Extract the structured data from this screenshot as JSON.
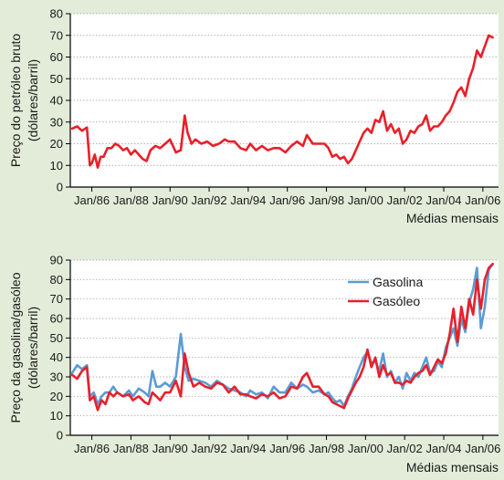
{
  "colors": {
    "background": "#e3ecd9",
    "plot_background": "#ffffff",
    "crude": "#e8202a",
    "gasolina": "#5b9bd5",
    "gasoleo": "#e8202a",
    "grid": "#9a9a9a"
  },
  "chart_data": [
    {
      "type": "line",
      "title": "",
      "xlabel": "Médias mensais",
      "ylabel_lines": [
        "Preço do petróleo bruto",
        "(dólares/barril)"
      ],
      "ylim": [
        0,
        80
      ],
      "yticks": [
        0,
        10,
        20,
        30,
        40,
        50,
        60,
        70,
        80
      ],
      "xlim": [
        1984.9,
        2006.8
      ],
      "xticks": [
        {
          "x": 1986,
          "label": "Jan/86"
        },
        {
          "x": 1988,
          "label": "Jan/88"
        },
        {
          "x": 1990,
          "label": "Jan/90"
        },
        {
          "x": 1992,
          "label": "Jan/92"
        },
        {
          "x": 1994,
          "label": "Jan/94"
        },
        {
          "x": 1996,
          "label": "Jan/96"
        },
        {
          "x": 1998,
          "label": "Jan/98"
        },
        {
          "x": 2000,
          "label": "Jan/00"
        },
        {
          "x": 2002,
          "label": "Jan/02"
        },
        {
          "x": 2004,
          "label": "Jan/04"
        },
        {
          "x": 2006,
          "label": "Jan/06"
        }
      ],
      "grid": "horizontal",
      "series": [
        {
          "color": "#e8202a",
          "x": [
            1985.0,
            1985.25,
            1985.5,
            1985.75,
            1985.9,
            1986.0,
            1986.15,
            1986.3,
            1986.45,
            1986.6,
            1986.8,
            1987.0,
            1987.2,
            1987.4,
            1987.6,
            1987.8,
            1988.0,
            1988.2,
            1988.4,
            1988.6,
            1988.8,
            1989.0,
            1989.25,
            1989.5,
            1989.75,
            1990.0,
            1990.3,
            1990.55,
            1990.75,
            1990.9,
            1991.1,
            1991.3,
            1991.6,
            1991.9,
            1992.2,
            1992.5,
            1992.8,
            1993.0,
            1993.3,
            1993.6,
            1993.9,
            1994.1,
            1994.4,
            1994.7,
            1995.0,
            1995.3,
            1995.6,
            1995.9,
            1996.2,
            1996.5,
            1996.8,
            1997.0,
            1997.3,
            1997.6,
            1997.9,
            1998.1,
            1998.3,
            1998.5,
            1998.7,
            1998.9,
            1999.1,
            1999.3,
            1999.5,
            1999.7,
            1999.9,
            2000.1,
            2000.3,
            2000.5,
            2000.7,
            2000.9,
            2001.1,
            2001.3,
            2001.5,
            2001.7,
            2001.9,
            2002.1,
            2002.3,
            2002.5,
            2002.7,
            2002.9,
            2003.1,
            2003.3,
            2003.5,
            2003.7,
            2003.9,
            2004.1,
            2004.3,
            2004.5,
            2004.7,
            2004.9,
            2005.1,
            2005.3,
            2005.5,
            2005.7,
            2005.9,
            2006.1,
            2006.3,
            2006.5
          ],
          "values": [
            27,
            28,
            26,
            27.5,
            10,
            11,
            15,
            9,
            14,
            14,
            18,
            18,
            20,
            19,
            17,
            18,
            15,
            17,
            15,
            13,
            12,
            17,
            19,
            18,
            20,
            22,
            16,
            17,
            33,
            25,
            20,
            22,
            20,
            21,
            19,
            20,
            22,
            21,
            21,
            18,
            17,
            20,
            17,
            19,
            17,
            18,
            18,
            16,
            19,
            21,
            19,
            24,
            20,
            20,
            20,
            18,
            14,
            15,
            13,
            14,
            11,
            13,
            17,
            21,
            25,
            27,
            25,
            31,
            30,
            35,
            26,
            29,
            25,
            27,
            20,
            22,
            26,
            25,
            28,
            29,
            33,
            26,
            28,
            28,
            30,
            33,
            35,
            39,
            44,
            46,
            42,
            50,
            55,
            63,
            60,
            65,
            70,
            69
          ]
        }
      ]
    },
    {
      "type": "line",
      "title": "",
      "xlabel": "Médias mensais",
      "ylabel_lines": [
        "Preço da gasolina/gasóleo",
        "(dólares/barril)"
      ],
      "ylim": [
        0,
        90
      ],
      "yticks": [
        0,
        10,
        20,
        30,
        40,
        50,
        60,
        70,
        80,
        90
      ],
      "xlim": [
        1984.9,
        2006.8
      ],
      "xticks": [
        {
          "x": 1986,
          "label": "Jan/86"
        },
        {
          "x": 1988,
          "label": "Jan/88"
        },
        {
          "x": 1990,
          "label": "Jan/90"
        },
        {
          "x": 1992,
          "label": "Jan/92"
        },
        {
          "x": 1994,
          "label": "Jan/94"
        },
        {
          "x": 1996,
          "label": "Jan/96"
        },
        {
          "x": 1998,
          "label": "Jan/98"
        },
        {
          "x": 2000,
          "label": "Jan/00"
        },
        {
          "x": 2002,
          "label": "Jan/02"
        },
        {
          "x": 2004,
          "label": "Jan/04"
        },
        {
          "x": 2006,
          "label": "Jan/06"
        }
      ],
      "grid": "horizontal",
      "legend": "top-right",
      "series": [
        {
          "name": "Gasolina",
          "color": "#5b9bd5",
          "x": [
            1985.0,
            1985.25,
            1985.5,
            1985.75,
            1985.9,
            1986.1,
            1986.3,
            1986.5,
            1986.7,
            1986.9,
            1987.1,
            1987.3,
            1987.6,
            1987.9,
            1988.1,
            1988.4,
            1988.7,
            1988.9,
            1989.1,
            1989.3,
            1989.5,
            1989.75,
            1990.0,
            1990.3,
            1990.55,
            1990.75,
            1990.95,
            1991.2,
            1991.5,
            1991.8,
            1992.1,
            1992.4,
            1992.7,
            1993.0,
            1993.3,
            1993.6,
            1993.9,
            1994.1,
            1994.4,
            1994.7,
            1995.0,
            1995.3,
            1995.6,
            1995.9,
            1996.2,
            1996.5,
            1996.8,
            1997.0,
            1997.3,
            1997.6,
            1997.9,
            1998.1,
            1998.3,
            1998.5,
            1998.7,
            1998.9,
            1999.1,
            1999.3,
            1999.5,
            1999.7,
            1999.9,
            2000.1,
            2000.3,
            2000.5,
            2000.7,
            2000.9,
            2001.1,
            2001.3,
            2001.5,
            2001.7,
            2001.9,
            2002.1,
            2002.3,
            2002.5,
            2002.7,
            2002.9,
            2003.1,
            2003.3,
            2003.5,
            2003.7,
            2003.9,
            2004.1,
            2004.3,
            2004.5,
            2004.7,
            2004.9,
            2005.1,
            2005.3,
            2005.5,
            2005.7,
            2005.9,
            2006.1,
            2006.3,
            2006.5
          ],
          "values": [
            32,
            36,
            34,
            36,
            20,
            22,
            16,
            20,
            22,
            22,
            25,
            22,
            20,
            23,
            20,
            24,
            22,
            20,
            33,
            25,
            25,
            27,
            25,
            30,
            52,
            35,
            28,
            29,
            28,
            27,
            25,
            28,
            26,
            24,
            23,
            22,
            20,
            23,
            21,
            22,
            19,
            25,
            22,
            22,
            27,
            24,
            26,
            25,
            22,
            23,
            21,
            22,
            19,
            17,
            18,
            15,
            20,
            24,
            30,
            35,
            40,
            43,
            37,
            38,
            33,
            42,
            30,
            33,
            27,
            30,
            24,
            32,
            28,
            32,
            30,
            35,
            40,
            32,
            33,
            38,
            35,
            45,
            50,
            55,
            46,
            60,
            53,
            68,
            75,
            86,
            55,
            66,
            85,
            88
          ]
        },
        {
          "name": "Gasóleo",
          "color": "#e8202a",
          "x": [
            1985.0,
            1985.25,
            1985.5,
            1985.75,
            1985.9,
            1986.1,
            1986.3,
            1986.5,
            1986.7,
            1986.9,
            1987.1,
            1987.3,
            1987.6,
            1987.9,
            1988.1,
            1988.4,
            1988.7,
            1988.9,
            1989.1,
            1989.3,
            1989.5,
            1989.75,
            1990.0,
            1990.3,
            1990.55,
            1990.75,
            1990.95,
            1991.2,
            1991.5,
            1991.8,
            1992.1,
            1992.4,
            1992.7,
            1993.0,
            1993.3,
            1993.6,
            1993.9,
            1994.1,
            1994.4,
            1994.7,
            1995.0,
            1995.3,
            1995.6,
            1995.9,
            1996.2,
            1996.5,
            1996.8,
            1997.0,
            1997.3,
            1997.6,
            1997.9,
            1998.1,
            1998.3,
            1998.5,
            1998.7,
            1998.9,
            1999.1,
            1999.3,
            1999.5,
            1999.7,
            1999.9,
            2000.1,
            2000.3,
            2000.5,
            2000.7,
            2000.9,
            2001.1,
            2001.3,
            2001.5,
            2001.7,
            2001.9,
            2002.1,
            2002.3,
            2002.5,
            2002.7,
            2002.9,
            2003.1,
            2003.3,
            2003.5,
            2003.7,
            2003.9,
            2004.1,
            2004.3,
            2004.5,
            2004.7,
            2004.9,
            2005.1,
            2005.3,
            2005.5,
            2005.7,
            2005.9,
            2006.1,
            2006.3,
            2006.5
          ],
          "values": [
            31,
            29,
            33,
            35,
            18,
            20,
            13,
            18,
            16,
            22,
            20,
            22,
            20,
            21,
            18,
            20,
            17,
            16,
            22,
            20,
            18,
            22,
            22,
            28,
            20,
            42,
            32,
            25,
            27,
            25,
            24,
            27,
            26,
            22,
            25,
            21,
            21,
            20,
            19,
            21,
            20,
            22,
            19,
            20,
            25,
            24,
            30,
            32,
            25,
            25,
            21,
            20,
            17,
            16,
            15,
            14,
            19,
            23,
            27,
            30,
            35,
            44,
            35,
            40,
            30,
            36,
            31,
            32,
            27,
            27,
            26,
            28,
            27,
            30,
            32,
            33,
            36,
            31,
            35,
            39,
            37,
            42,
            52,
            65,
            48,
            66,
            55,
            70,
            62,
            80,
            65,
            80,
            86,
            88
          ]
        }
      ]
    }
  ]
}
